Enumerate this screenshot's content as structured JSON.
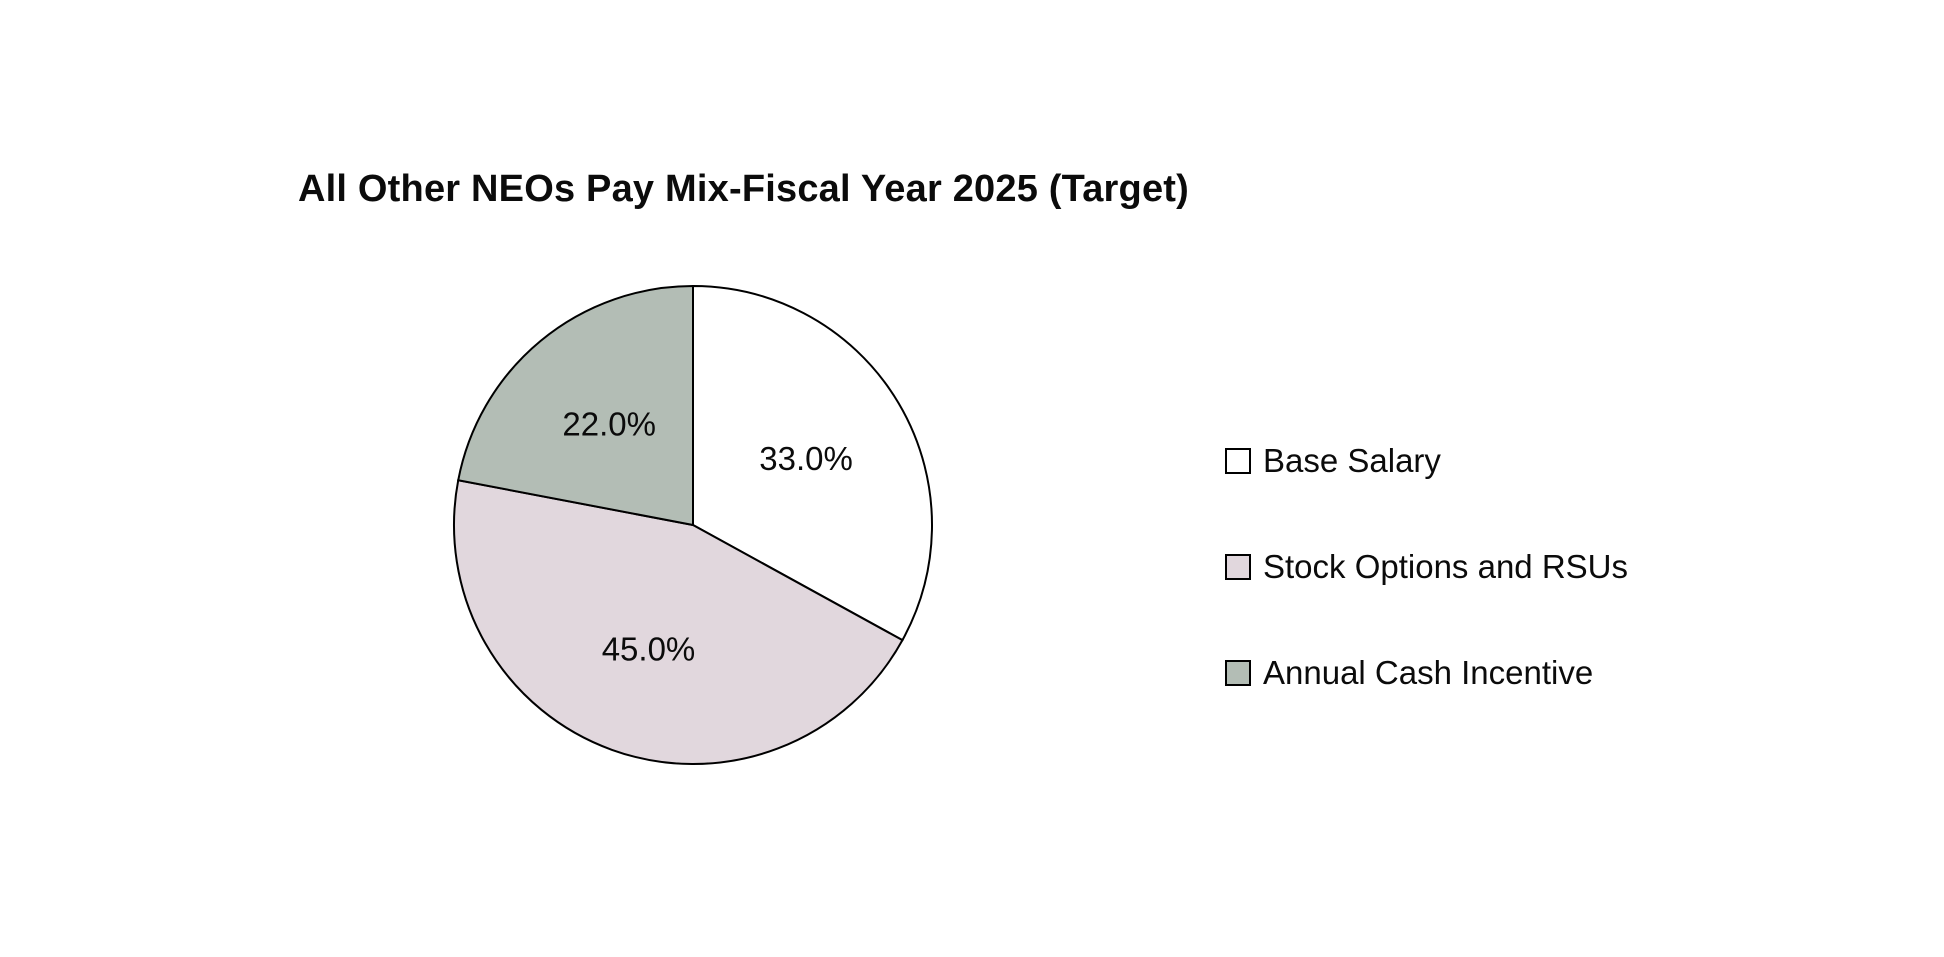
{
  "chart_data": {
    "type": "pie",
    "title": "All Other NEOs Pay Mix-Fiscal Year 2025 (Target)",
    "slices": [
      {
        "label": "Base Salary",
        "value": 33.0,
        "display": "33.0%",
        "color": "#ffffff"
      },
      {
        "label": "Stock Options and RSUs",
        "value": 45.0,
        "display": "45.0%",
        "color": "#e1d7dd"
      },
      {
        "label": "Annual Cash Incentive",
        "value": 22.0,
        "display": "22.0%",
        "color": "#b3bdb5"
      }
    ],
    "start_angle_deg": 0,
    "direction": "clockwise",
    "slice_border_color": "#000000",
    "legend_position": "right",
    "legend_entries": [
      "Base Salary",
      "Stock Options and RSUs",
      "Annual Cash Incentive"
    ],
    "background_color": "#ffffff"
  }
}
